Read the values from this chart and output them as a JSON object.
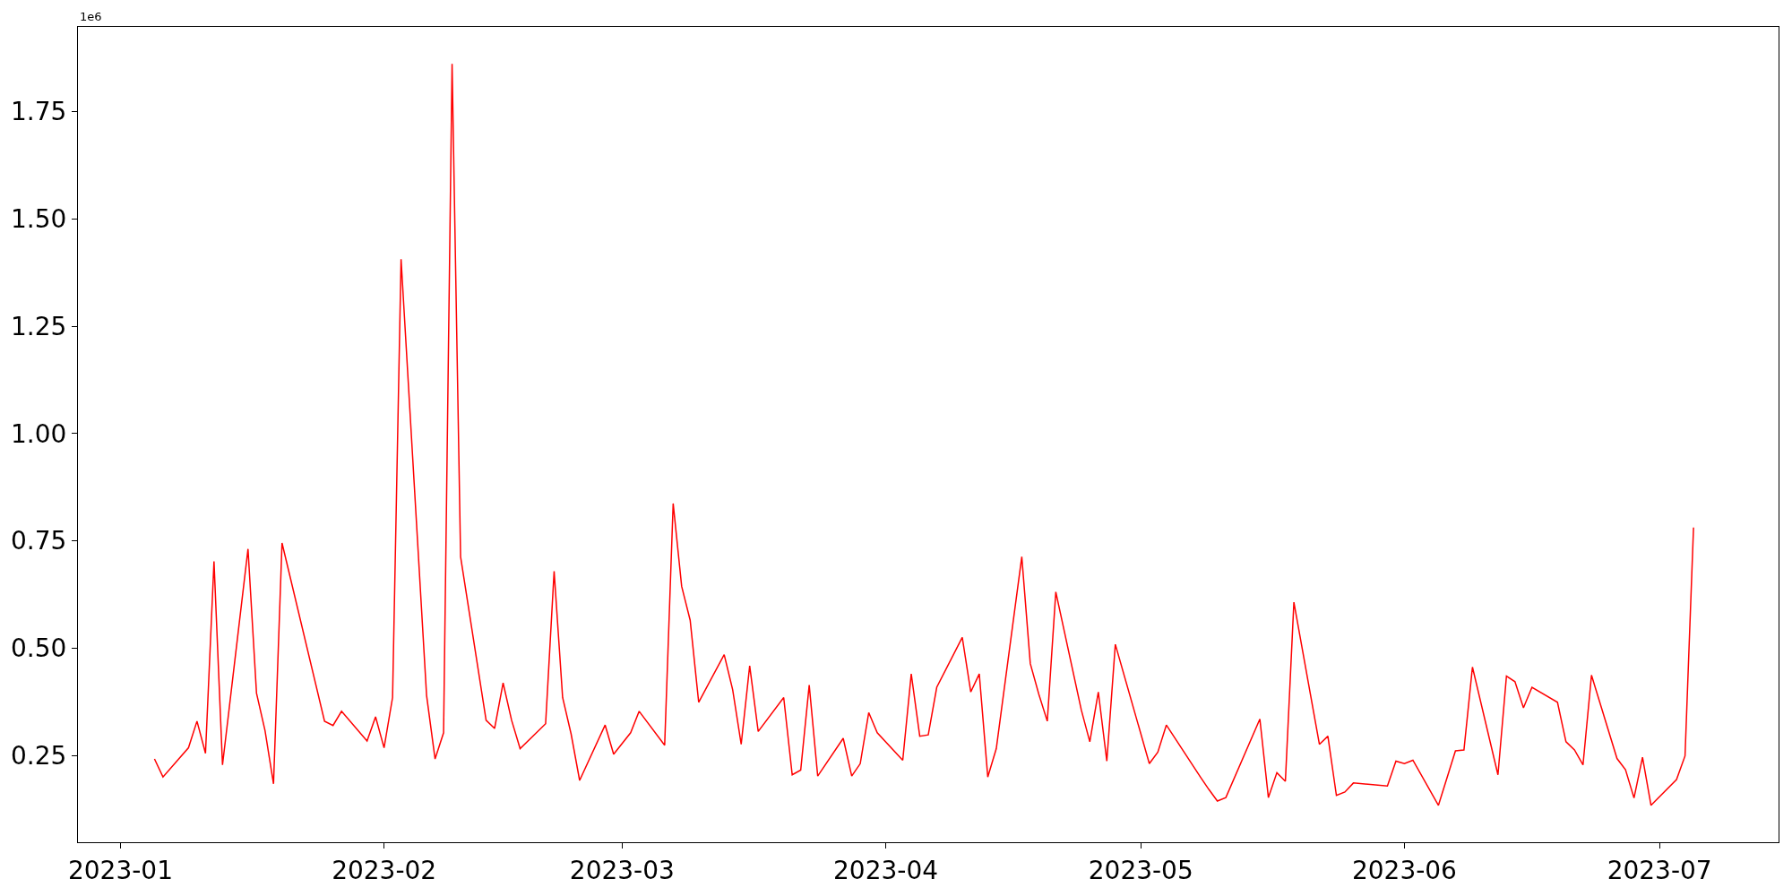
{
  "chart_data": {
    "type": "line",
    "x": [
      "2023-01-05",
      "2023-01-06",
      "2023-01-09",
      "2023-01-10",
      "2023-01-11",
      "2023-01-12",
      "2023-01-13",
      "2023-01-16",
      "2023-01-17",
      "2023-01-18",
      "2023-01-19",
      "2023-01-20",
      "2023-01-25",
      "2023-01-26",
      "2023-01-27",
      "2023-01-30",
      "2023-01-31",
      "2023-02-01",
      "2023-02-02",
      "2023-02-03",
      "2023-02-06",
      "2023-02-07",
      "2023-02-08",
      "2023-02-09",
      "2023-02-10",
      "2023-02-13",
      "2023-02-14",
      "2023-02-15",
      "2023-02-16",
      "2023-02-17",
      "2023-02-20",
      "2023-02-21",
      "2023-02-22",
      "2023-02-23",
      "2023-02-24",
      "2023-02-27",
      "2023-02-28",
      "2023-03-02",
      "2023-03-03",
      "2023-03-06",
      "2023-03-07",
      "2023-03-08",
      "2023-03-09",
      "2023-03-10",
      "2023-03-13",
      "2023-03-14",
      "2023-03-15",
      "2023-03-16",
      "2023-03-17",
      "2023-03-20",
      "2023-03-21",
      "2023-03-22",
      "2023-03-23",
      "2023-03-24",
      "2023-03-27",
      "2023-03-28",
      "2023-03-29",
      "2023-03-30",
      "2023-03-31",
      "2023-04-03",
      "2023-04-04",
      "2023-04-05",
      "2023-04-06",
      "2023-04-07",
      "2023-04-10",
      "2023-04-11",
      "2023-04-12",
      "2023-04-13",
      "2023-04-14",
      "2023-04-17",
      "2023-04-18",
      "2023-04-19",
      "2023-04-20",
      "2023-04-21",
      "2023-04-24",
      "2023-04-25",
      "2023-04-26",
      "2023-04-27",
      "2023-04-28",
      "2023-05-02",
      "2023-05-03",
      "2023-05-04",
      "2023-05-08",
      "2023-05-09",
      "2023-05-10",
      "2023-05-11",
      "2023-05-15",
      "2023-05-16",
      "2023-05-17",
      "2023-05-18",
      "2023-05-19",
      "2023-05-22",
      "2023-05-23",
      "2023-05-24",
      "2023-05-25",
      "2023-05-26",
      "2023-05-30",
      "2023-05-31",
      "2023-06-01",
      "2023-06-02",
      "2023-06-05",
      "2023-06-07",
      "2023-06-08",
      "2023-06-09",
      "2023-06-12",
      "2023-06-13",
      "2023-06-14",
      "2023-06-15",
      "2023-06-16",
      "2023-06-19",
      "2023-06-20",
      "2023-06-21",
      "2023-06-22",
      "2023-06-23",
      "2023-06-26",
      "2023-06-27",
      "2023-06-28",
      "2023-06-29",
      "2023-06-30",
      "2023-07-03",
      "2023-07-04",
      "2023-07-05"
    ],
    "series": [
      {
        "color": "#ff0000",
        "values": [
          0.242,
          0.2,
          0.268,
          0.33,
          0.255,
          0.702,
          0.228,
          0.731,
          0.395,
          0.308,
          0.184,
          0.745,
          0.33,
          0.32,
          0.353,
          0.284,
          0.34,
          0.268,
          0.385,
          1.406,
          0.39,
          0.242,
          0.303,
          1.861,
          0.713,
          0.332,
          0.313,
          0.419,
          0.332,
          0.266,
          0.324,
          0.679,
          0.385,
          0.3,
          0.192,
          0.321,
          0.253,
          0.303,
          0.353,
          0.274,
          0.837,
          0.644,
          0.565,
          0.374,
          0.485,
          0.403,
          0.276,
          0.459,
          0.306,
          0.385,
          0.205,
          0.216,
          0.414,
          0.202,
          0.29,
          0.202,
          0.231,
          0.35,
          0.303,
          0.239,
          0.44,
          0.295,
          0.298,
          0.409,
          0.525,
          0.398,
          0.44,
          0.2,
          0.266,
          0.713,
          0.464,
          0.393,
          0.33,
          0.631,
          0.356,
          0.282,
          0.398,
          0.237,
          0.509,
          0.231,
          0.258,
          0.321,
          0.2,
          0.171,
          0.144,
          0.152,
          0.335,
          0.152,
          0.21,
          0.19,
          0.607,
          0.276,
          0.295,
          0.157,
          0.165,
          0.186,
          0.179,
          0.237,
          0.231,
          0.239,
          0.134,
          0.261,
          0.263,
          0.456,
          0.205,
          0.435,
          0.422,
          0.361,
          0.409,
          0.374,
          0.282,
          0.263,
          0.228,
          0.437,
          0.243,
          0.217,
          0.151,
          0.246,
          0.134,
          0.194,
          0.249,
          0.781
        ]
      }
    ],
    "xlim": [
      "2022-12-27",
      "2023-07-15"
    ],
    "xticks": [
      "2023-01",
      "2023-02",
      "2023-03",
      "2023-04",
      "2023-05",
      "2023-06",
      "2023-07"
    ],
    "ylim": [
      0.048,
      1.947
    ],
    "yticks": [
      0.25,
      {
        "value": 0.5,
        "label": "0.50"
      },
      0.75,
      {
        "value": 1.0,
        "label": "1.00"
      },
      1.25,
      {
        "value": 1.5,
        "label": "1.50"
      },
      1.75
    ],
    "annotations": [
      "1e6"
    ],
    "line_style": "solid",
    "marker": "none"
  }
}
